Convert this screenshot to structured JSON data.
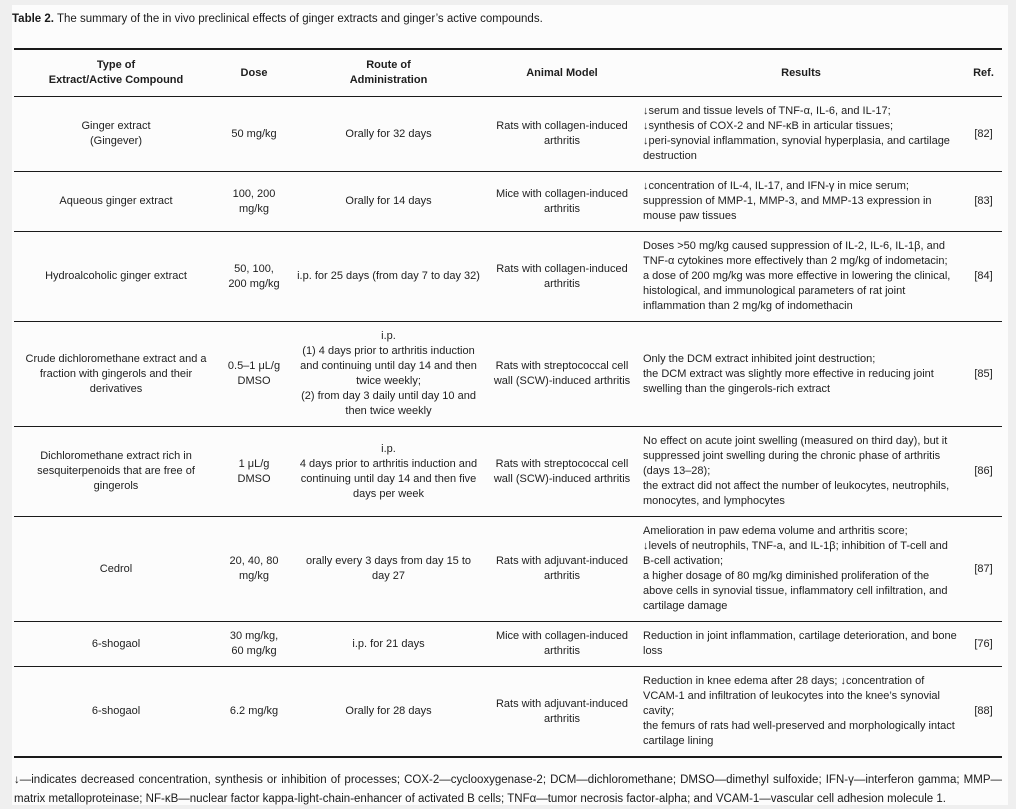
{
  "caption": {
    "label": "Table 2.",
    "text": "The summary of the in vivo preclinical effects of ginger extracts and ginger’s active compounds."
  },
  "table": {
    "columns": [
      "Type of\nExtract/Active Compound",
      "Dose",
      "Route of\nAdministration",
      "Animal Model",
      "Results",
      "Ref."
    ],
    "rows": [
      {
        "type": "Ginger extract\n(Gingever)",
        "dose": "50 mg/kg",
        "route": "Orally for 32 days",
        "model": "Rats with collagen-induced arthritis",
        "results": "↓serum and tissue levels of TNF-α, IL-6, and IL-17;\n↓synthesis of COX-2 and NF-κB in articular tissues;\n↓peri-synovial inflammation, synovial hyperplasia, and cartilage destruction",
        "ref": "[82]"
      },
      {
        "type": "Aqueous ginger extract",
        "dose": "100, 200\nmg/kg",
        "route": "Orally for 14 days",
        "model": "Mice with collagen-induced arthritis",
        "results": "↓concentration of IL-4, IL-17, and IFN-γ in mice serum;\nsuppression of MMP-1, MMP-3, and MMP-13 expression in mouse paw tissues",
        "ref": "[83]"
      },
      {
        "type": "Hydroalcoholic ginger extract",
        "dose": "50, 100,\n200 mg/kg",
        "route": "i.p. for 25 days (from day 7 to day 32)",
        "model": "Rats with collagen-induced arthritis",
        "results": "Doses >50 mg/kg caused suppression of IL-2, IL-6, IL-1β, and TNF-α cytokines more effectively than 2 mg/kg of indometacin;\na dose of 200 mg/kg was more effective in lowering the clinical, histological, and immunological parameters of rat joint inflammation than 2 mg/kg of indomethacin",
        "ref": "[84]"
      },
      {
        "type": "Crude dichloromethane extract and a fraction with gingerols and their derivatives",
        "dose": "0.5–1 μL/g\nDMSO",
        "route": "i.p.\n(1) 4 days prior to arthritis induction and continuing until day 14 and then twice weekly;\n(2) from day 3 daily until day 10 and then twice weekly",
        "model": "Rats with streptococcal cell wall (SCW)-induced arthritis",
        "results": "Only the DCM extract inhibited joint destruction;\nthe DCM extract was slightly more effective in reducing joint swelling than the gingerols-rich extract",
        "ref": "[85]"
      },
      {
        "type": "Dichloromethane extract rich in sesquiterpenoids that are free of gingerols",
        "dose": "1 μL/g\nDMSO",
        "route": "i.p.\n4 days prior to arthritis induction and continuing until day 14 and then five days per week",
        "model": "Rats with streptococcal cell wall (SCW)-induced arthritis",
        "results": "No effect on acute joint swelling (measured on third day), but it suppressed joint swelling during the chronic phase of arthritis (days 13–28);\nthe extract did not affect the number of leukocytes, neutrophils, monocytes, and lymphocytes",
        "ref": "[86]"
      },
      {
        "type": "Cedrol",
        "dose": "20, 40, 80\nmg/kg",
        "route": "orally every 3 days from day 15 to day 27",
        "model": "Rats with adjuvant-induced arthritis",
        "results": "Amelioration in paw edema volume and arthritis score;\n↓levels of neutrophils, TNF-a, and IL-1β; inhibition of T-cell and B-cell activation;\na higher dosage of 80 mg/kg diminished proliferation of the above cells in synovial tissue, inflammatory cell infiltration, and cartilage damage",
        "ref": "[87]"
      },
      {
        "type": "6-shogaol",
        "dose": "30 mg/kg,\n60 mg/kg",
        "route": "i.p. for 21 days",
        "model": "Mice with collagen-induced arthritis",
        "results": "Reduction in joint inflammation, cartilage deterioration, and bone loss",
        "ref": "[76]"
      },
      {
        "type": "6-shogaol",
        "dose": "6.2 mg/kg",
        "route": "Orally for 28 days",
        "model": "Rats with adjuvant-induced arthritis",
        "results": "Reduction in knee edema after 28 days; ↓concentration of VCAM-1 and infiltration of leukocytes into the knee’s synovial cavity;\nthe femurs of rats had well-preserved and morphologically intact cartilage lining",
        "ref": "[88]"
      }
    ]
  },
  "footnote": "↓—indicates decreased concentration, synthesis or inhibition of processes; COX-2—cyclooxygenase-2; DCM—dichloromethane; DMSO—dimethyl sulfoxide; IFN-γ—interferon gamma; MMP—matrix metalloproteinase; NF-κB—nuclear factor kappa-light-chain-enhancer of activated B cells; TNFα—tumor necrosis factor-alpha; and VCAM-1—vascular cell adhesion molecule 1."
}
